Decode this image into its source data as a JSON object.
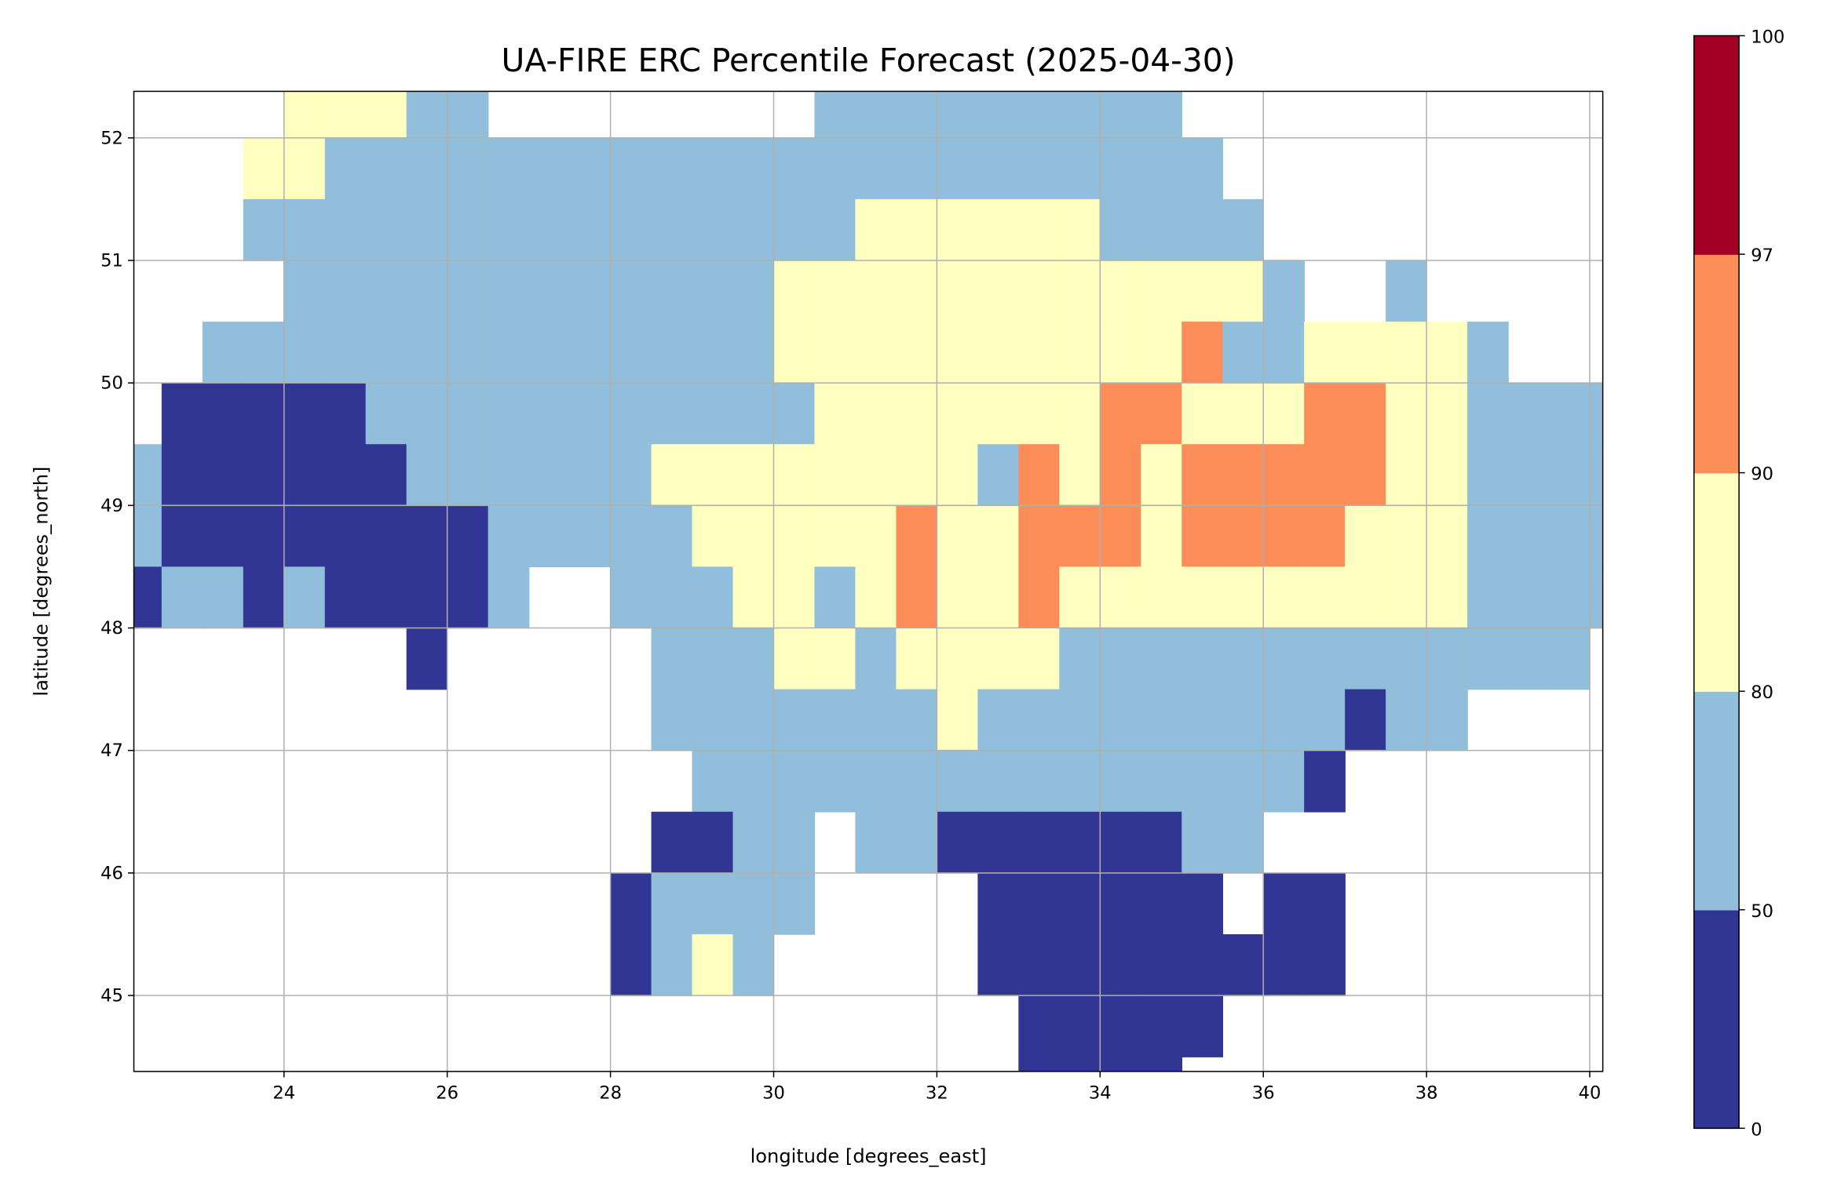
{
  "chart_data": {
    "type": "heatmap",
    "title": "UA-FIRE ERC Percentile Forecast (2025-04-30)",
    "xlabel": "longitude [degrees_east]",
    "ylabel": "latitude [degrees_north]",
    "xlim": [
      22.16,
      40.16
    ],
    "ylim": [
      44.38,
      52.38
    ],
    "xticks": [
      "24",
      "26",
      "28",
      "30",
      "32",
      "34",
      "36",
      "38",
      "40"
    ],
    "xtick_values": [
      24,
      26,
      28,
      30,
      32,
      34,
      36,
      38,
      40
    ],
    "yticks": [
      "45",
      "46",
      "47",
      "48",
      "49",
      "50",
      "51",
      "52"
    ],
    "ytick_values": [
      45,
      46,
      47,
      48,
      49,
      50,
      51,
      52
    ],
    "grid": true,
    "colorbar": {
      "boundaries": [
        0,
        50,
        80,
        90,
        97,
        100
      ],
      "tick_labels": [
        "0",
        "50",
        "80",
        "90",
        "97",
        "100"
      ],
      "colors": [
        "#313695",
        "#91bfdb",
        "#ffffbf",
        "#fc8d59",
        "#a50026"
      ],
      "placement": "right"
    },
    "grid_cells": {
      "lon_start": 22.0,
      "lat_start": 52.5,
      "cell_deg": 0.5,
      "legend": {
        "D": "0-50",
        "L": "50-80",
        "Y": "80-90",
        "O": "90-97",
        "R": "97-100",
        ".": "no data"
      },
      "rows": [
        "....YYYLL........LLLLLLLLL...........",
        "...YYLLLLLLLLLLLLLLLLLLLLLL..........",
        "...LLLLLLLLLLLLLLLYYYYYYLLLL.........",
        "....LLLLLLLLLLLLYYYYYYYYYYYYL..L.....",
        "..LLLLLLLLLLLLLLYYYYYYYYYYOLLYYYYL...",
        ".DDDDDLLLLLLLLLLLYYYYYYYOOYYYOOYYLLLL",
        "LDDDDDDLLLLLLYYYYYYYYLOYOYOOOOOYYLLLL",
        "LDDDDDDDDLLLLLYYYYYOYYOOOYOOOOYYYLLLL",
        "DLLDLDDDDL..LLLYYLYOYYOYYYYYYYYYYLLLL",
        ".......D.....LLLYYLYYYYLLLLLLLLLLLLL.",
        ".............LLLLLLLYLLLLLLLLLDLL....",
        "..............LLLLLLLLLLLLLLLD.......",
        ".............DDLL.LLDDDDDDLL.........",
        "............DLLLL....DDDDDD.DD.......",
        "............DLYL.....DDDDDDDDD.......",
        "......................DDDDD..........",
        "......................DDDD..........."
      ]
    }
  }
}
